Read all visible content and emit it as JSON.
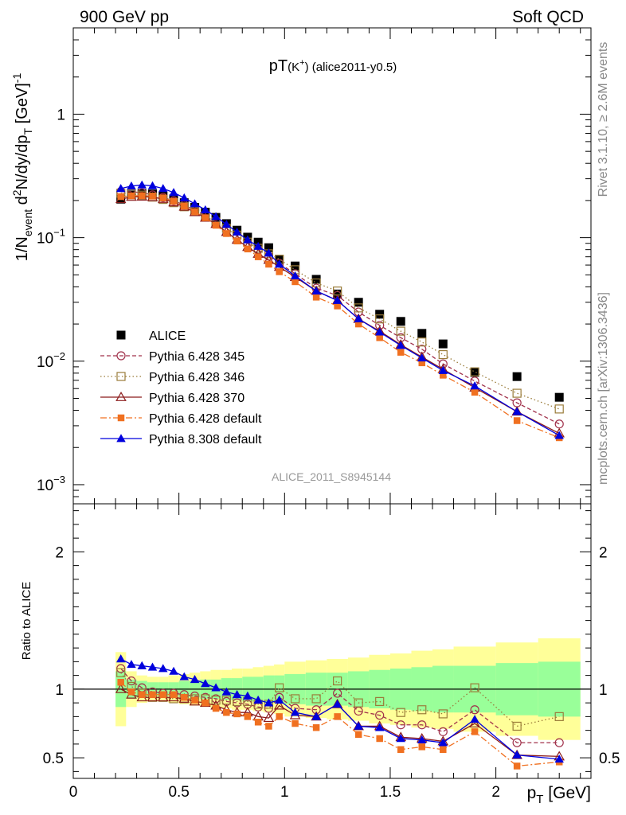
{
  "header": {
    "left": "900 GeV pp",
    "right": "Soft QCD"
  },
  "side_labels": {
    "rivet": "Rivet 3.1.10, ≥ 2.6M events",
    "mcplots": "mcplots.cern.ch [arXiv:1306.3436]"
  },
  "chart_data": [
    {
      "type": "scatter",
      "title": "pT(K+) (alice2011-y0.5)",
      "title_main": "pT",
      "title_species": "K",
      "title_charge": "+",
      "title_tag": "(alice2011-y0.5)",
      "watermark": "ALICE_2011_S8945144",
      "ylabel": "1/N_event d2N/dy/dp_T [GeV]-1",
      "ylabel_parts": {
        "a": "1/N",
        "a_sub": "event",
        "b": " d",
        "b_sup": "2",
        "c": "N/dy/dp",
        "c_sub": "T",
        "d": " [GeV]",
        "d_sup": "-1"
      },
      "yscale": "log",
      "ylim": [
        0.0007,
        5
      ],
      "xlim": [
        0,
        2.45
      ],
      "y_ticks": [
        {
          "v": 1,
          "label": "1"
        },
        {
          "v": 0.1,
          "base": "10",
          "exp": "−1"
        },
        {
          "v": 0.01,
          "base": "10",
          "exp": "−2"
        },
        {
          "v": 0.001,
          "base": "10",
          "exp": "−3"
        }
      ],
      "legend_position": "lower-left",
      "x": [
        0.225,
        0.275,
        0.325,
        0.375,
        0.425,
        0.475,
        0.525,
        0.575,
        0.625,
        0.675,
        0.725,
        0.775,
        0.825,
        0.875,
        0.925,
        0.975,
        1.05,
        1.15,
        1.25,
        1.35,
        1.45,
        1.55,
        1.65,
        1.75,
        1.9,
        2.1,
        2.3
      ],
      "series": [
        {
          "name": "ALICE",
          "style": "data",
          "color": "#000000",
          "values": [
            0.205,
            0.222,
            0.228,
            0.226,
            0.218,
            0.206,
            0.192,
            0.176,
            0.161,
            0.146,
            0.13,
            0.115,
            0.101,
            0.092,
            0.083,
            0.066,
            0.059,
            0.046,
            0.035,
            0.03,
            0.024,
            0.021,
            0.0168,
            0.0138,
            0.0081,
            0.0075,
            0.0051
          ]
        },
        {
          "name": "Pythia 6.428 345",
          "style": "open-circle",
          "color": "#a0304a",
          "dash": "5,3",
          "values": [
            0.236,
            0.236,
            0.231,
            0.222,
            0.212,
            0.199,
            0.184,
            0.167,
            0.152,
            0.135,
            0.118,
            0.103,
            0.09,
            0.08,
            0.071,
            0.062,
            0.051,
            0.039,
            0.034,
            0.025,
            0.0195,
            0.0155,
            0.0125,
            0.0095,
            0.0069,
            0.0046,
            0.0031
          ]
        },
        {
          "name": "Pythia 6.428 346",
          "style": "open-square",
          "color": "#9a7c3a",
          "dash": "1.5,3",
          "values": [
            0.229,
            0.227,
            0.221,
            0.213,
            0.204,
            0.192,
            0.178,
            0.163,
            0.149,
            0.134,
            0.119,
            0.105,
            0.092,
            0.082,
            0.074,
            0.067,
            0.055,
            0.043,
            0.037,
            0.027,
            0.022,
            0.0175,
            0.0143,
            0.0113,
            0.0082,
            0.0055,
            0.0041
          ]
        },
        {
          "name": "Pythia 6.428 370",
          "style": "open-triangle",
          "color": "#8b1a1a",
          "dash": "",
          "values": [
            0.205,
            0.214,
            0.215,
            0.213,
            0.206,
            0.193,
            0.178,
            0.161,
            0.145,
            0.129,
            0.111,
            0.096,
            0.084,
            0.074,
            0.066,
            0.058,
            0.048,
            0.037,
            0.031,
            0.022,
            0.0175,
            0.0136,
            0.0108,
            0.0086,
            0.0061,
            0.0039,
            0.0026
          ]
        },
        {
          "name": "Pythia 6.428 default",
          "style": "filled-square",
          "color": "#f07020",
          "dash": "8,3,2,3",
          "values": [
            0.215,
            0.218,
            0.219,
            0.217,
            0.21,
            0.197,
            0.18,
            0.162,
            0.145,
            0.126,
            0.108,
            0.094,
            0.081,
            0.07,
            0.061,
            0.053,
            0.044,
            0.033,
            0.028,
            0.02,
            0.0155,
            0.0118,
            0.0097,
            0.0077,
            0.0056,
            0.0033,
            0.0024
          ]
        },
        {
          "name": "Pythia 8.308 default",
          "style": "filled-triangle",
          "color": "#0000dd",
          "dash": "",
          "values": [
            0.25,
            0.262,
            0.267,
            0.263,
            0.25,
            0.232,
            0.21,
            0.188,
            0.168,
            0.148,
            0.128,
            0.111,
            0.096,
            0.085,
            0.075,
            0.061,
            0.049,
            0.037,
            0.031,
            0.022,
            0.0172,
            0.0134,
            0.0106,
            0.0084,
            0.0063,
            0.0039,
            0.0025
          ]
        }
      ]
    },
    {
      "type": "scatter",
      "ylabel": "Ratio to ALICE",
      "xlabel": "p_T [GeV]",
      "xlabel_parts": {
        "a": "p",
        "a_sub": "T",
        "b": " [GeV]"
      },
      "ylim": [
        0.35,
        2.35
      ],
      "xlim": [
        0,
        2.45
      ],
      "y_ticks": [
        0.5,
        1,
        2
      ],
      "x_ticks": [
        0,
        0.5,
        1,
        1.5,
        2
      ],
      "x_tick_labels": [
        "0",
        "0.5",
        "1",
        "1.5",
        "2"
      ],
      "y_tick_labels": [
        "0.5",
        "1",
        "2"
      ],
      "reference_line": 1,
      "bin_edges": [
        0.2,
        0.25,
        0.3,
        0.35,
        0.4,
        0.45,
        0.5,
        0.55,
        0.6,
        0.65,
        0.7,
        0.75,
        0.8,
        0.85,
        0.9,
        0.95,
        1.0,
        1.1,
        1.2,
        1.3,
        1.4,
        1.5,
        1.6,
        1.7,
        1.8,
        2.0,
        2.2,
        2.4
      ],
      "band_stat": [
        0.13,
        0.07,
        0.06,
        0.05,
        0.05,
        0.05,
        0.06,
        0.06,
        0.07,
        0.07,
        0.08,
        0.08,
        0.09,
        0.09,
        0.1,
        0.1,
        0.11,
        0.12,
        0.12,
        0.13,
        0.14,
        0.15,
        0.16,
        0.17,
        0.17,
        0.19,
        0.2
      ],
      "band_total": [
        0.27,
        0.13,
        0.1,
        0.09,
        0.09,
        0.1,
        0.11,
        0.12,
        0.13,
        0.14,
        0.14,
        0.15,
        0.15,
        0.16,
        0.17,
        0.18,
        0.2,
        0.21,
        0.22,
        0.23,
        0.25,
        0.26,
        0.28,
        0.29,
        0.31,
        0.34,
        0.37
      ],
      "band_colors": {
        "total": "#ffff99",
        "stat": "#99ff99"
      },
      "x": [
        0.225,
        0.275,
        0.325,
        0.375,
        0.425,
        0.475,
        0.525,
        0.575,
        0.625,
        0.675,
        0.725,
        0.775,
        0.825,
        0.875,
        0.925,
        0.975,
        1.05,
        1.15,
        1.25,
        1.35,
        1.45,
        1.55,
        1.65,
        1.75,
        1.9,
        2.1,
        2.3
      ],
      "series": [
        {
          "name": "Pythia 6.428 345",
          "style": "open-circle",
          "color": "#a0304a",
          "dash": "5,3",
          "values": [
            1.15,
            1.06,
            1.01,
            0.98,
            0.97,
            0.97,
            0.96,
            0.95,
            0.94,
            0.93,
            0.91,
            0.9,
            0.89,
            0.87,
            0.86,
            0.94,
            0.86,
            0.85,
            0.97,
            0.84,
            0.81,
            0.74,
            0.74,
            0.69,
            0.85,
            0.61,
            0.61
          ]
        },
        {
          "name": "Pythia 6.428 346",
          "style": "open-square",
          "color": "#9a7c3a",
          "dash": "1.5,3",
          "values": [
            1.12,
            1.02,
            0.97,
            0.94,
            0.94,
            0.93,
            0.93,
            0.93,
            0.93,
            0.92,
            0.92,
            0.91,
            0.91,
            0.89,
            0.89,
            1.01,
            0.93,
            0.93,
            1.06,
            0.9,
            0.91,
            0.83,
            0.85,
            0.82,
            1.01,
            0.73,
            0.8
          ]
        },
        {
          "name": "Pythia 6.428 370",
          "style": "open-triangle",
          "color": "#8b1a1a",
          "dash": "",
          "values": [
            1.0,
            0.96,
            0.94,
            0.94,
            0.94,
            0.94,
            0.93,
            0.91,
            0.9,
            0.88,
            0.85,
            0.83,
            0.83,
            0.8,
            0.79,
            0.88,
            0.81,
            0.8,
            0.89,
            0.73,
            0.73,
            0.65,
            0.64,
            0.62,
            0.75,
            0.52,
            0.51
          ]
        },
        {
          "name": "Pythia 6.428 default",
          "style": "filled-square",
          "color": "#f07020",
          "dash": "8,3,2,3",
          "values": [
            1.05,
            0.98,
            0.96,
            0.96,
            0.96,
            0.96,
            0.94,
            0.92,
            0.9,
            0.86,
            0.83,
            0.82,
            0.8,
            0.76,
            0.73,
            0.8,
            0.75,
            0.72,
            0.8,
            0.67,
            0.64,
            0.56,
            0.58,
            0.56,
            0.69,
            0.44,
            0.47
          ]
        },
        {
          "name": "Pythia 8.308 default",
          "style": "filled-triangle",
          "color": "#0000dd",
          "dash": "",
          "values": [
            1.22,
            1.18,
            1.17,
            1.16,
            1.15,
            1.13,
            1.09,
            1.07,
            1.04,
            1.01,
            0.98,
            0.96,
            0.95,
            0.92,
            0.9,
            0.92,
            0.83,
            0.8,
            0.89,
            0.73,
            0.72,
            0.64,
            0.63,
            0.61,
            0.78,
            0.52,
            0.49
          ]
        }
      ]
    }
  ]
}
